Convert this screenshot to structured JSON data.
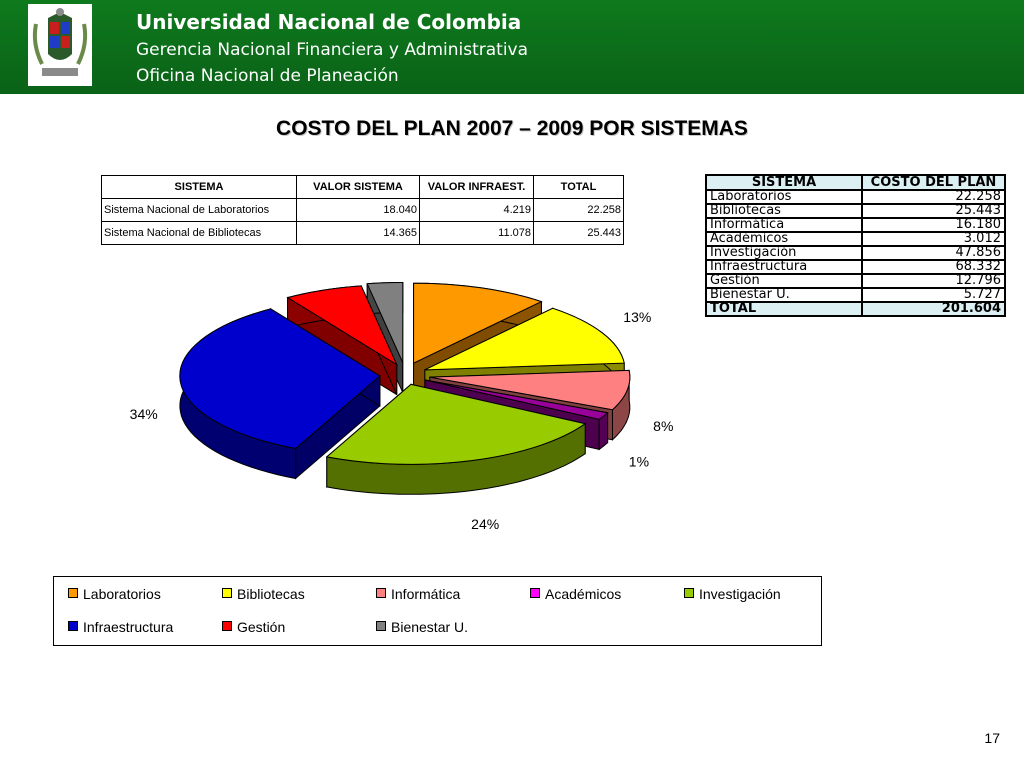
{
  "header": {
    "line1": "Universidad Nacional de Colombia",
    "line2": "Gerencia Nacional Financiera y Administrativa",
    "line3": "Oficina Nacional de Planeación"
  },
  "title": "COSTO DEL PLAN 2007 – 2009 POR SISTEMAS",
  "table1": {
    "headers": [
      "SISTEMA",
      "VALOR SISTEMA",
      "VALOR INFRAEST.",
      "TOTAL"
    ],
    "rows": [
      [
        "Sistema Nacional de Laboratorios",
        "18.040",
        "4.219",
        "22.258"
      ],
      [
        "Sistema Nacional de Bibliotecas",
        "14.365",
        "11.078",
        "25.443"
      ]
    ]
  },
  "table2": {
    "header_sistema": "SISTEMA",
    "header_costo": "COSTO DEL PLAN",
    "rows": [
      [
        "Laboratorios",
        "22.258"
      ],
      [
        "Bibliotecas",
        "25.443"
      ],
      [
        "Informática",
        "16.180"
      ],
      [
        "Académicos",
        "3.012"
      ],
      [
        "Investigación",
        "47.856"
      ],
      [
        "Infraestructura",
        "68.332"
      ],
      [
        "Gestión",
        "12.796"
      ],
      [
        "Bienestar U.",
        "5.727"
      ]
    ],
    "total_label": "TOTAL",
    "total_value": "201.604"
  },
  "chart_data": {
    "type": "pie",
    "title": "",
    "categories": [
      "Laboratorios",
      "Bibliotecas",
      "Informática",
      "Académicos",
      "Investigación",
      "Infraestructura",
      "Gestión",
      "Bienestar U."
    ],
    "values": [
      22258,
      25443,
      16180,
      3012,
      47856,
      68332,
      12796,
      5727
    ],
    "labels": [
      "11%",
      "13%",
      "8%",
      "1%",
      "24%",
      "34%",
      "6%",
      "3%"
    ],
    "colors": [
      "#ff9900",
      "#ffff00",
      "#ff8080",
      "#990099",
      "#99cc00",
      "#0000cc",
      "#ff0000",
      "#808080"
    ],
    "legend_position": "bottom"
  },
  "legend_row1": [
    "Laboratorios",
    "Bibliotecas",
    "Informática",
    "Académicos",
    "Investigación"
  ],
  "legend_row2": [
    "Infraestructura",
    "Gestión",
    "Bienestar U."
  ],
  "page_number": "17"
}
